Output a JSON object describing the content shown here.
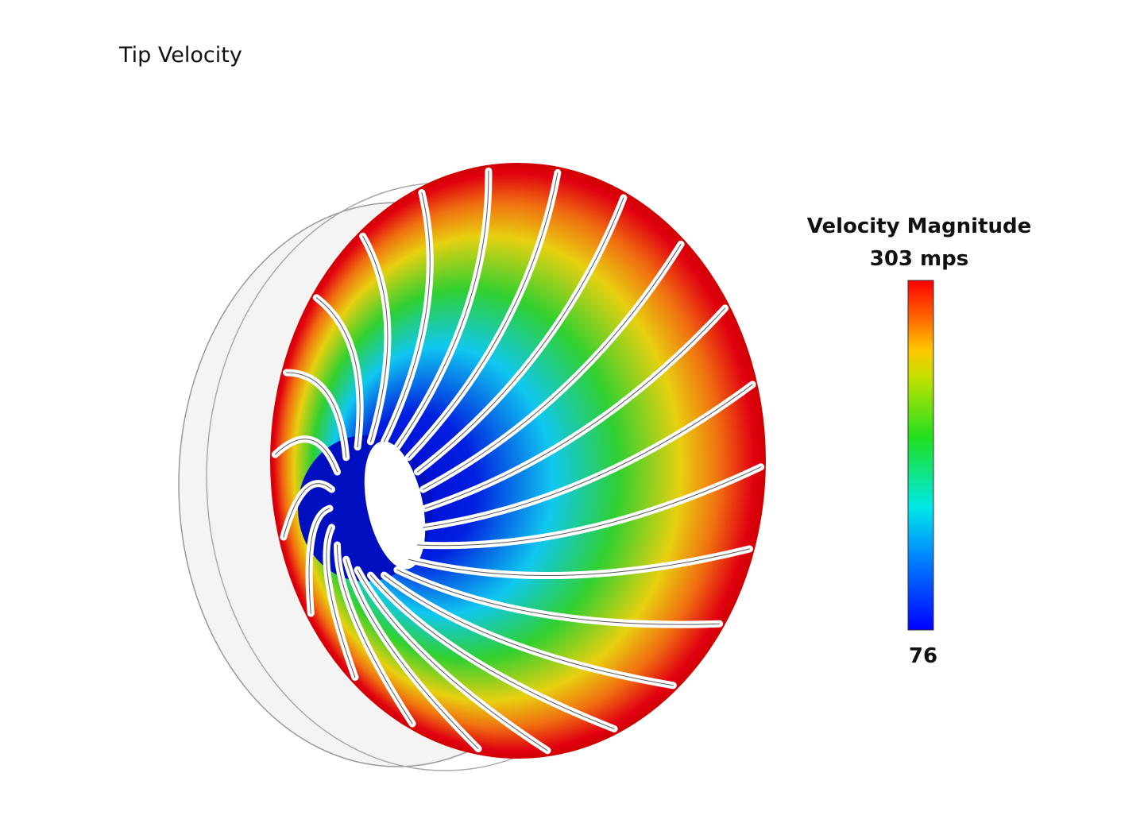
{
  "header": {
    "title": "Tip Velocity"
  },
  "legend": {
    "title": "Velocity Magnitude",
    "max_label": "303 mps",
    "min_label": "76"
  }
}
